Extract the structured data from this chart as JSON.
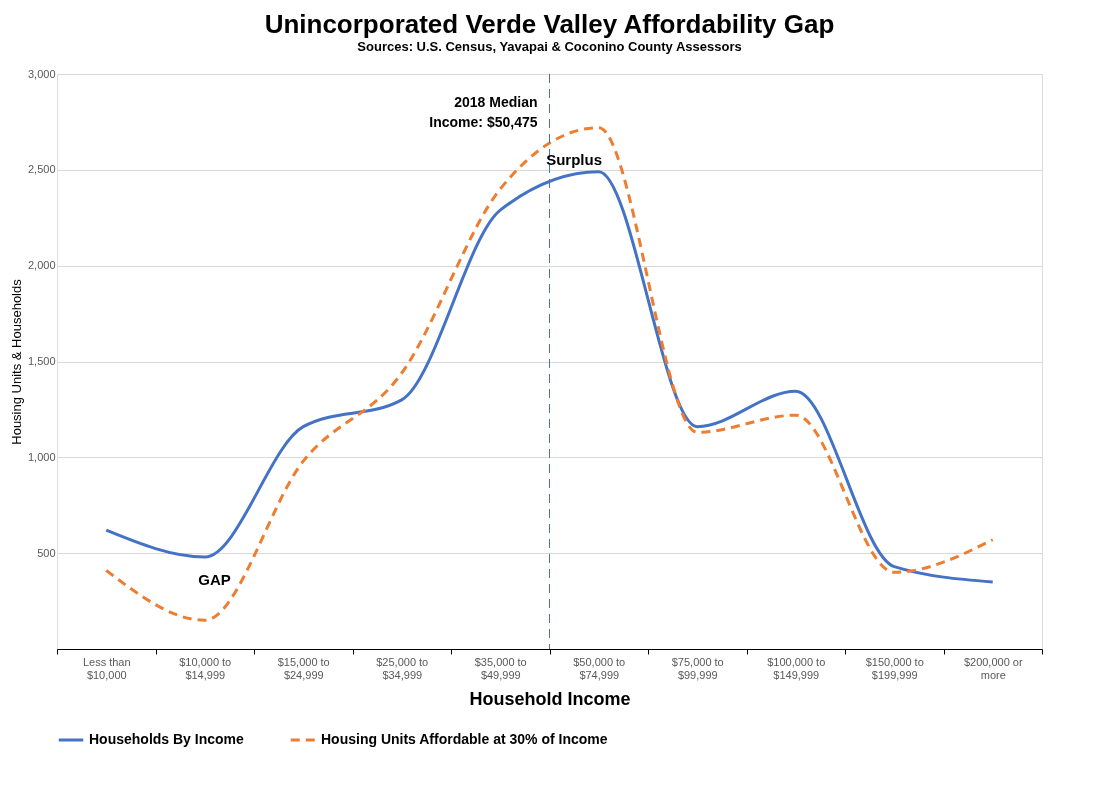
{
  "chart_data": {
    "type": "line",
    "title": "Unincorporated Verde Valley Affordability Gap",
    "subtitle": "Sources: U.S. Census, Yavapai & Coconino County Assessors",
    "xlabel": "Household Income",
    "ylabel": "Housing Units & Households",
    "categories": [
      "Less than $10,000",
      "$10,000 to $14,999",
      "$15,000 to $24,999",
      "$25,000 to $34,999",
      "$35,000 to $49,999",
      "$50,000 to $74,999",
      "$75,000 to $99,999",
      "$100,000 to $149,999",
      "$150,000 to $199,999",
      "$200,000 or more"
    ],
    "series": [
      {
        "name": "Households By Income",
        "color": "#4472c4",
        "line_style": "solid",
        "values": [
          620,
          480,
          1160,
          1300,
          2290,
          2490,
          1160,
          1345,
          430,
          350
        ]
      },
      {
        "name": "Housing Units Affordable at 30% of Income",
        "color": "#ed7d31",
        "line_style": "dashed",
        "values": [
          410,
          150,
          980,
          1440,
          2400,
          2720,
          1130,
          1220,
          400,
          570
        ]
      }
    ],
    "ylim": [
      0,
      3000
    ],
    "yticks": [
      {
        "value": 0,
        "label": null
      },
      500,
      {
        "value": 1000,
        "label": "1,000"
      },
      {
        "value": 1500,
        "label": "1,500"
      },
      {
        "value": 2000,
        "label": "2,000"
      },
      {
        "value": 2500,
        "label": "2,500"
      },
      {
        "value": 3000,
        "label": "3,000"
      }
    ],
    "ref_lines": [
      {
        "axis": "x",
        "value": "$50,000 to $74,999",
        "label": "2018 Median Income: $50,475",
        "color": "#4472c4",
        "line_style": "dashed"
      }
    ],
    "annotations": [
      "GAP",
      "Surplus"
    ],
    "grid": "y",
    "legend": "bottom",
    "marker": "none"
  }
}
